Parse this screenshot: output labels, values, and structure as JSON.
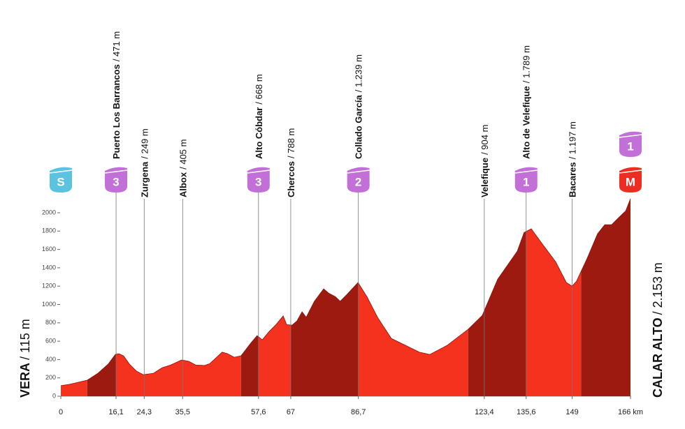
{
  "chart_data": {
    "type": "area",
    "xlim": [
      0,
      166
    ],
    "ylim": [
      0,
      2000
    ],
    "yticks": [
      0,
      200,
      400,
      600,
      800,
      1000,
      1200,
      1400,
      1600,
      1800,
      2000
    ],
    "xticks": [
      0,
      {
        "value": 16.1,
        "label": "16,1"
      },
      {
        "value": 24.3,
        "label": "24,3"
      },
      {
        "value": 35.5,
        "label": "35,5"
      },
      {
        "value": 57.6,
        "label": "57,6"
      },
      67,
      {
        "value": 86.7,
        "label": "86,7"
      },
      {
        "value": 123.4,
        "label": "123,4"
      },
      {
        "value": 135.6,
        "label": "135,6"
      },
      149,
      {
        "value": 166,
        "label": "166 km"
      }
    ],
    "x": [
      0,
      2.6,
      7.7,
      10.8,
      13.8,
      15.9,
      16.9,
      18.3,
      20,
      22,
      24,
      27,
      29.5,
      32,
      35.2,
      37.3,
      39.3,
      41.8,
      43.4,
      45.4,
      47,
      48.5,
      50.5,
      52.5,
      55.6,
      57.2,
      58.7,
      60.7,
      62.7,
      64.8,
      65.8,
      67.4,
      68.8,
      70.3,
      71.5,
      73.9,
      76.6,
      78,
      80,
      81.4,
      83.4,
      86.6,
      89.2,
      92.3,
      96.3,
      100.4,
      104.5,
      107.5,
      112.6,
      118.7,
      122.8,
      127.3,
      133,
      135,
      137.1,
      140.1,
      144.2,
      147.3,
      149,
      150.3,
      153.4,
      156.4,
      158.5,
      160.5,
      162.5,
      164.6,
      166
    ],
    "values": [
      115,
      130,
      175,
      250,
      350,
      456,
      464,
      440,
      350,
      275,
      235,
      250,
      310,
      340,
      395,
      380,
      340,
      335,
      355,
      425,
      480,
      465,
      425,
      440,
      590,
      660,
      615,
      705,
      780,
      875,
      780,
      775,
      820,
      920,
      860,
      1035,
      1170,
      1125,
      1085,
      1035,
      1110,
      1239,
      1085,
      860,
      630,
      555,
      480,
      455,
      555,
      730,
      880,
      1275,
      1580,
      1785,
      1825,
      1670,
      1465,
      1240,
      1200,
      1255,
      1505,
      1770,
      1870,
      1870,
      1945,
      2020,
      2153
    ],
    "segments": [
      {
        "start": 0,
        "end": 7.7,
        "color": "#f5321e"
      },
      {
        "start": 7.7,
        "end": 16.1,
        "color": "#9c1a10"
      },
      {
        "start": 16.1,
        "end": 52.5,
        "color": "#f5321e"
      },
      {
        "start": 52.5,
        "end": 57.6,
        "color": "#9c1a10"
      },
      {
        "start": 57.6,
        "end": 67,
        "color": "#f5321e"
      },
      {
        "start": 67,
        "end": 86.7,
        "color": "#9c1a10"
      },
      {
        "start": 86.7,
        "end": 118.7,
        "color": "#f5321e"
      },
      {
        "start": 118.7,
        "end": 135.6,
        "color": "#9c1a10"
      },
      {
        "start": 135.6,
        "end": 151.6,
        "color": "#f5321e"
      },
      {
        "start": 151.6,
        "end": 166,
        "color": "#9c1a10"
      }
    ],
    "start": {
      "km": 0,
      "name": "VERA",
      "altitude": "/ 115 m",
      "badge": "S",
      "badge_color": "#5bc3e0"
    },
    "finish": {
      "km": 166,
      "name": "CALAR ALTO",
      "altitude": "/ 2.153 m",
      "badges": [
        {
          "label": "1",
          "color": "#c36fd8"
        },
        {
          "label": "M",
          "color": "#ee2c22"
        }
      ]
    },
    "points": [
      {
        "km": 16.1,
        "name": "Puerto Los Barrancos",
        "altitude": "/ 471 m",
        "badge": "3",
        "badge_color": "#c36fd8"
      },
      {
        "km": 24.3,
        "name": "Zurgena",
        "altitude": "/ 249 m"
      },
      {
        "km": 35.5,
        "name": "Albox",
        "altitude": "/ 405 m"
      },
      {
        "km": 57.6,
        "name": "Alto Cóbdar",
        "altitude": "/ 668 m",
        "badge": "3",
        "badge_color": "#c36fd8"
      },
      {
        "km": 67,
        "name": "Chercos",
        "altitude": "/ 788 m"
      },
      {
        "km": 86.7,
        "name": "Collado García",
        "altitude": "/ 1.239 m",
        "badge": "2",
        "badge_color": "#c36fd8"
      },
      {
        "km": 123.4,
        "name": "Velefique",
        "altitude": "/ 904 m"
      },
      {
        "km": 135.6,
        "name": "Alto de Velefique",
        "altitude": "/ 1.789 m",
        "badge": "1",
        "badge_color": "#c36fd8"
      },
      {
        "km": 149,
        "name": "Bacares",
        "altitude": "/ 1.197 m"
      }
    ]
  }
}
